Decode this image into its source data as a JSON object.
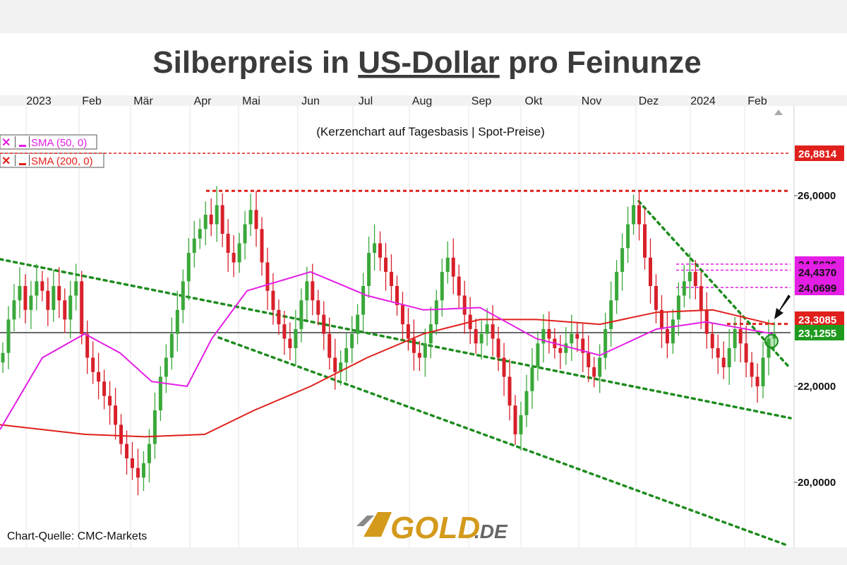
{
  "chart_data": {
    "type": "candlestick",
    "title": "Silberpreis in US-Dollar pro Feinunze",
    "title_parts": [
      "Silberpreis in ",
      "US-Dollar",
      " pro Feinunze"
    ],
    "subtitle": "(Kerzenchart auf Tagesbasis | Spot-Preise)",
    "x_labels": [
      "2023",
      "Feb",
      "Mär",
      "Apr",
      "Mai",
      "Jun",
      "Jul",
      "Aug",
      "Sep",
      "Okt",
      "Nov",
      "Dez",
      "2024",
      "Feb"
    ],
    "y_ticks": [
      {
        "value": 26.0,
        "label": "26,0000"
      },
      {
        "value": 22.0,
        "label": "22,0000"
      },
      {
        "value": 20.0,
        "label": "20,0000"
      }
    ],
    "ylim": [
      19.0,
      27.6
    ],
    "price_labels": [
      {
        "value": 26.8814,
        "label": "26,8814",
        "bg": "#e0201c",
        "color": "#ffffff"
      },
      {
        "value": 24.5636,
        "label": "24,5636",
        "bg": "#e41ee4",
        "color": "#111111"
      },
      {
        "value": 24.437,
        "label": "24,4370",
        "bg": "#e41ee4",
        "color": "#111111"
      },
      {
        "value": 24.0699,
        "label": "24,0699",
        "bg": "#e41ee4",
        "color": "#111111"
      },
      {
        "value": 23.3085,
        "label": "23,3085",
        "bg": "#e0201c",
        "color": "#ffffff"
      },
      {
        "value": 23.1255,
        "label": "23,1255",
        "bg": "#1f9a1f",
        "color": "#ffffff"
      }
    ],
    "legend": [
      {
        "label": "SMA (50, 0)",
        "color": "#e41ee4"
      },
      {
        "label": "SMA (200, 0)",
        "color": "#e0201c"
      }
    ],
    "horizontal_lines": [
      {
        "value": 26.8814,
        "style": "dashed",
        "color": "#e0201c",
        "from": "Jan 2023",
        "to": "Feb 2024"
      },
      {
        "value": 26.1,
        "style": "dotted",
        "color": "#e0201c",
        "from": "Apr 2023",
        "to": "Feb 2024"
      },
      {
        "value": 24.5636,
        "style": "dashed",
        "color": "#e41ee4",
        "from": "Dez 2023",
        "to": "Feb 2024"
      },
      {
        "value": 24.437,
        "style": "dashed",
        "color": "#e41ee4",
        "from": "Dez 2023",
        "to": "Feb 2024"
      },
      {
        "value": 24.0699,
        "style": "dashed",
        "color": "#e41ee4",
        "from": "Dez 2023",
        "to": "Feb 2024"
      },
      {
        "value": 23.3085,
        "style": "dotted",
        "color": "#e0201c",
        "from": "Feb 2024",
        "to": "Feb 2024"
      },
      {
        "value": 23.1255,
        "style": "solid",
        "color": "#111111",
        "from": "Jan 2023",
        "to": "Feb 2024"
      }
    ],
    "trendlines": [
      {
        "from": [
          "Jan 2023",
          24.8
        ],
        "to": [
          "Feb 2024",
          21.5
        ],
        "color": "#1e8c1e",
        "style": "dotted"
      },
      {
        "from": [
          "Mär 2023",
          23.0
        ],
        "to": [
          "Feb 2024",
          18.6
        ],
        "color": "#1e8c1e",
        "style": "dotted"
      },
      {
        "from": [
          "Dez 2023",
          25.9
        ],
        "to": [
          "Feb 2024",
          22.5
        ],
        "color": "#1e8c1e",
        "style": "dotted"
      }
    ],
    "sma50": [
      [
        "Jan 2023",
        21.1
      ],
      [
        "Jan 2023",
        22.6
      ],
      [
        "Feb 2023",
        23.1
      ],
      [
        "Feb 2023",
        22.7
      ],
      [
        "Mär 2023",
        22.1
      ],
      [
        "Apr 2023",
        22.0
      ],
      [
        "Apr 2023",
        23.0
      ],
      [
        "Mai 2023",
        24.0
      ],
      [
        "Jun 2023",
        24.4
      ],
      [
        "Jul 2023",
        23.9
      ],
      [
        "Aug 2023",
        23.6
      ],
      [
        "Sep 2023",
        23.65
      ],
      [
        "Okt 2023",
        23.0
      ],
      [
        "Nov 2023",
        22.65
      ],
      [
        "Dez 2023",
        23.2
      ],
      [
        "2024",
        23.35
      ],
      [
        "Feb 2024",
        23.1
      ]
    ],
    "sma200": [
      [
        "Jan 2023",
        21.2
      ],
      [
        "Feb 2023",
        21.0
      ],
      [
        "Mär 2023",
        20.95
      ],
      [
        "Apr 2023",
        21.0
      ],
      [
        "Mai 2023",
        21.5
      ],
      [
        "Jun 2023",
        22.0
      ],
      [
        "Jul 2023",
        22.6
      ],
      [
        "Aug 2023",
        23.1
      ],
      [
        "Sep 2023",
        23.4
      ],
      [
        "Okt 2023",
        23.4
      ],
      [
        "Nov 2023",
        23.3
      ],
      [
        "Dez 2023",
        23.55
      ],
      [
        "2024",
        23.6
      ],
      [
        "Feb 2024",
        23.3
      ]
    ],
    "candles_close": [
      22.7,
      23.4,
      23.8,
      24.1,
      23.6,
      23.9,
      24.2,
      24.0,
      23.6,
      24.1,
      23.8,
      23.4,
      23.9,
      24.2,
      23.1,
      22.6,
      22.3,
      22.1,
      21.8,
      21.6,
      21.2,
      20.8,
      20.5,
      20.3,
      20.1,
      20.4,
      20.8,
      21.5,
      22.2,
      22.6,
      23.1,
      23.6,
      24.2,
      24.8,
      25.1,
      25.3,
      25.6,
      25.4,
      25.8,
      25.2,
      24.8,
      24.6,
      25.0,
      25.4,
      25.7,
      25.3,
      24.6,
      24.0,
      23.6,
      23.3,
      23.0,
      22.8,
      23.2,
      23.8,
      24.2,
      23.8,
      23.5,
      23.1,
      22.6,
      22.3,
      22.5,
      22.8,
      23.1,
      23.5,
      24.1,
      24.8,
      25.0,
      24.7,
      24.4,
      24.1,
      23.7,
      23.3,
      23.0,
      22.7,
      22.6,
      22.9,
      23.3,
      23.8,
      24.4,
      24.7,
      24.3,
      23.9,
      23.5,
      23.2,
      22.9,
      23.1,
      23.3,
      23.0,
      22.6,
      22.2,
      21.6,
      21.0,
      21.4,
      21.9,
      22.4,
      22.9,
      23.2,
      23.0,
      22.8,
      22.7,
      22.9,
      23.1,
      23.0,
      22.7,
      22.4,
      22.2,
      22.6,
      23.2,
      23.8,
      24.4,
      24.9,
      25.4,
      25.8,
      25.4,
      24.7,
      24.1,
      23.6,
      23.2,
      22.9,
      23.4,
      23.9,
      24.2,
      24.4,
      24.1,
      23.6,
      23.1,
      22.8,
      22.6,
      22.4,
      22.8,
      23.2,
      22.9,
      22.5,
      22.2,
      22.0,
      22.6,
      23.0,
      23.1
    ],
    "annotation": "arrow pointing to latest candle at 23,3085",
    "source": "Chart-Quelle: CMC-Markets"
  },
  "logo": {
    "text_main": "GOLD",
    "text_suffix": ".DE"
  },
  "colors": {
    "bull": "#3aa83a",
    "bear": "#d8202a",
    "sma50": "#e41ee4",
    "sma200": "#e0201c",
    "trend": "#1e8c1e",
    "gold": "#d49a1c"
  }
}
